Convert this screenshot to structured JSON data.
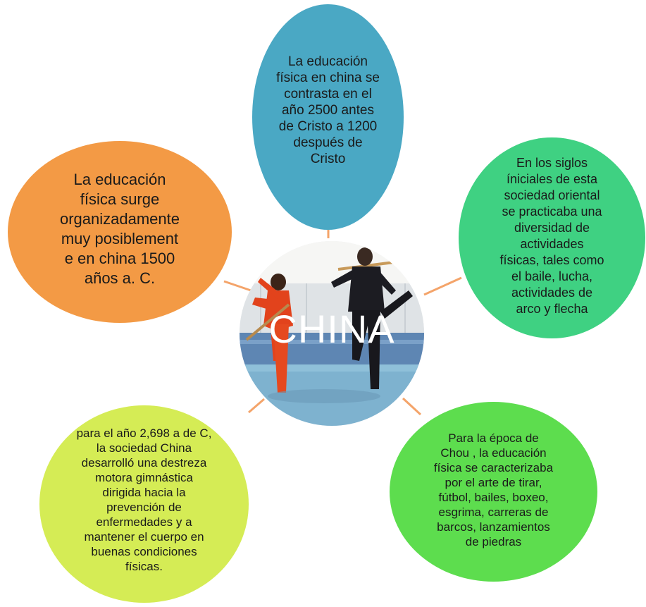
{
  "center": {
    "label": "CHINA",
    "photo_description_icon": "martial-arts-photo"
  },
  "bubbles": {
    "top": {
      "text": "La educación\nfísica en china se\ncontrasta en el\naño 2500 antes\nde Cristo a 1200\ndespués de\nCristo",
      "color": "#4aa8c4"
    },
    "left": {
      "text": "La educación\nfísica surge\norganizadamente\nmuy  posiblement\ne en china 1500\naños a. C.",
      "color": "#f39a45"
    },
    "right": {
      "text": "En los siglos\níniciales de esta\nsociedad oriental\nse practicaba una\ndiversidad de\nactividades\nfísicas, tales como\nel baile, lucha,\nactividades de\narco y flecha",
      "color": "#3fd182"
    },
    "bottom_left": {
      "text": "para el año 2,698 a de C,\nla sociedad China\ndesarrolló una destreza\nmotora gimnástica\ndirigida hacia la\nprevención de\nenfermedades y a\nmantener el cuerpo en\nbuenas condiciones\nfísicas.",
      "color": "#d5ec55"
    },
    "bottom_right": {
      "text": "Para la época de\nChou , la educación\nfísica se caracterizaba\npor el arte de tirar,\nfútbol, bailes, boxeo,\nesgrima, carreras de\nbarcos, lanzamientos\nde piedras",
      "color": "#5ddd4e"
    }
  },
  "connector_color": "#f4a46a"
}
